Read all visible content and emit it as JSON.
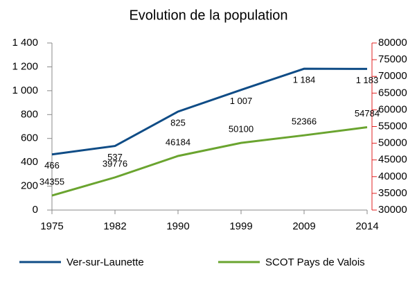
{
  "chart_data": {
    "type": "line",
    "title": "Evolution de la population",
    "categories": [
      "1975",
      "1982",
      "1990",
      "1999",
      "2009",
      "2014"
    ],
    "series": [
      {
        "name": "Ver-sur-Launette",
        "color": "#0f4c86",
        "values": [
          466,
          537,
          825,
          1007,
          1184,
          1183
        ],
        "value_labels": [
          "466",
          "537",
          "825",
          "1 007",
          "1 184",
          "1 183"
        ]
      },
      {
        "name": "SCOT Pays de Valois",
        "color": "#6aa42f",
        "axis": "y2",
        "values": [
          34355,
          39776,
          46184,
          50100,
          52366,
          54784
        ]
      }
    ],
    "ylim": [
      0,
      1400
    ],
    "yticks": [
      0,
      200,
      400,
      600,
      800,
      {
        "value": 1000,
        "label": "1 000"
      },
      {
        "value": 1200,
        "label": "1 200"
      },
      {
        "value": 1400,
        "label": "1 400"
      }
    ],
    "y2lim": [
      30000,
      80000
    ],
    "y2ticks": [
      30000,
      35000,
      40000,
      45000,
      50000,
      55000,
      60000,
      65000,
      70000,
      75000,
      80000
    ],
    "y2_axis_color": "#e02020",
    "legend": "bottom"
  }
}
